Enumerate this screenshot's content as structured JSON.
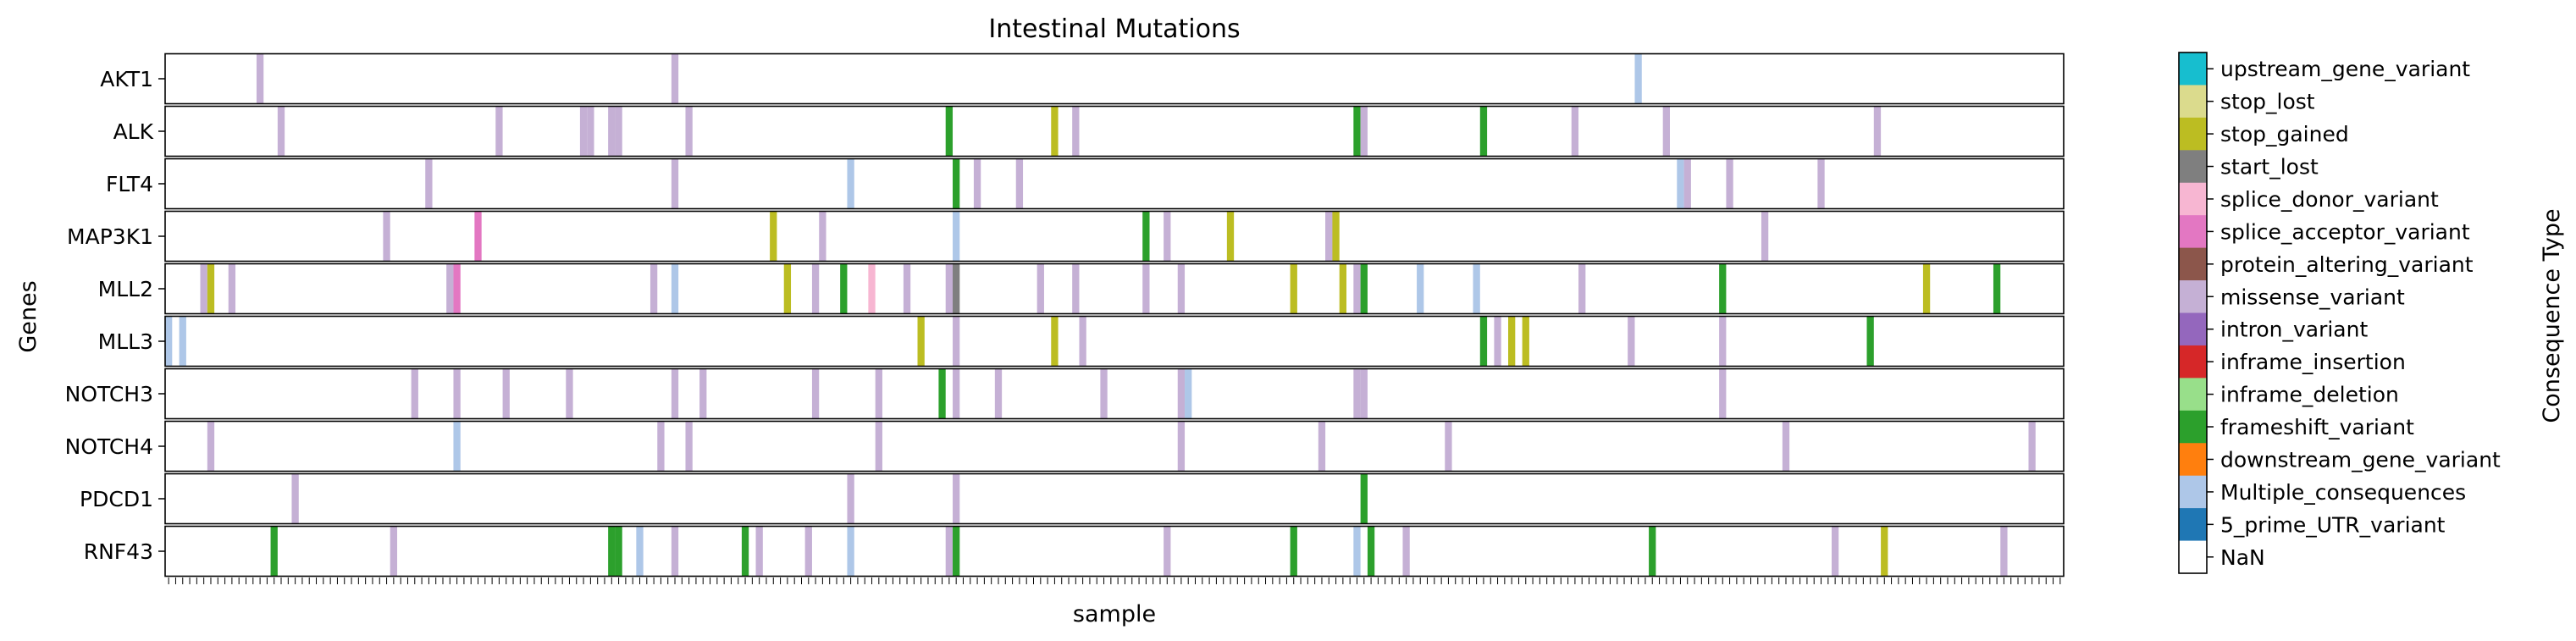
{
  "chart_data": {
    "type": "heatmap",
    "title": "Intestinal Mutations",
    "xlabel": "sample",
    "ylabel": "Genes",
    "colorbar_label": "Consequence Type",
    "n_samples": 270,
    "genes": [
      "AKT1",
      "ALK",
      "FLT4",
      "MAP3K1",
      "MLL2",
      "MLL3",
      "NOTCH3",
      "NOTCH4",
      "PDCD1",
      "RNF43"
    ],
    "categories": [
      {
        "name": "upstream_gene_variant",
        "color": "#17becf"
      },
      {
        "name": "stop_lost",
        "color": "#dbdb8d"
      },
      {
        "name": "stop_gained",
        "color": "#bcbd22"
      },
      {
        "name": "start_lost",
        "color": "#7f7f7f"
      },
      {
        "name": "splice_donor_variant",
        "color": "#f7b6d2"
      },
      {
        "name": "splice_acceptor_variant",
        "color": "#e377c2"
      },
      {
        "name": "protein_altering_variant",
        "color": "#8c564b"
      },
      {
        "name": "missense_variant",
        "color": "#c5b0d5"
      },
      {
        "name": "intron_variant",
        "color": "#9467bd"
      },
      {
        "name": "inframe_insertion",
        "color": "#d62728"
      },
      {
        "name": "inframe_deletion",
        "color": "#98df8a"
      },
      {
        "name": "frameshift_variant",
        "color": "#2ca02c"
      },
      {
        "name": "downstream_gene_variant",
        "color": "#ff7f0e"
      },
      {
        "name": "Multiple_consequences",
        "color": "#aec7e8"
      },
      {
        "name": "5_prime_UTR_variant",
        "color": "#1f77b4"
      },
      {
        "name": "NaN",
        "color": "#ffffff"
      }
    ],
    "mutations": {
      "AKT1": [
        [
          13,
          "missense_variant"
        ],
        [
          72,
          "missense_variant"
        ],
        [
          209,
          "Multiple_consequences"
        ]
      ],
      "ALK": [
        [
          16,
          "missense_variant"
        ],
        [
          47,
          "missense_variant"
        ],
        [
          59,
          "missense_variant"
        ],
        [
          60,
          "missense_variant"
        ],
        [
          63,
          "missense_variant"
        ],
        [
          64,
          "missense_variant"
        ],
        [
          74,
          "missense_variant"
        ],
        [
          111,
          "frameshift_variant"
        ],
        [
          126,
          "stop_gained"
        ],
        [
          129,
          "missense_variant"
        ],
        [
          169,
          "frameshift_variant"
        ],
        [
          170,
          "missense_variant"
        ],
        [
          187,
          "frameshift_variant"
        ],
        [
          200,
          "missense_variant"
        ],
        [
          213,
          "missense_variant"
        ],
        [
          243,
          "missense_variant"
        ]
      ],
      "FLT4": [
        [
          37,
          "missense_variant"
        ],
        [
          72,
          "missense_variant"
        ],
        [
          97,
          "Multiple_consequences"
        ],
        [
          112,
          "frameshift_variant"
        ],
        [
          115,
          "missense_variant"
        ],
        [
          121,
          "missense_variant"
        ],
        [
          215,
          "Multiple_consequences"
        ],
        [
          216,
          "missense_variant"
        ],
        [
          222,
          "missense_variant"
        ],
        [
          235,
          "missense_variant"
        ]
      ],
      "MAP3K1": [
        [
          31,
          "missense_variant"
        ],
        [
          44,
          "splice_acceptor_variant"
        ],
        [
          86,
          "stop_gained"
        ],
        [
          93,
          "missense_variant"
        ],
        [
          112,
          "Multiple_consequences"
        ],
        [
          139,
          "frameshift_variant"
        ],
        [
          142,
          "missense_variant"
        ],
        [
          151,
          "stop_gained"
        ],
        [
          165,
          "missense_variant"
        ],
        [
          165,
          "missense_variant"
        ],
        [
          166,
          "stop_gained"
        ],
        [
          227,
          "missense_variant"
        ]
      ],
      "MLL2": [
        [
          5,
          "missense_variant"
        ],
        [
          6,
          "stop_gained"
        ],
        [
          9,
          "missense_variant"
        ],
        [
          40,
          "missense_variant"
        ],
        [
          41,
          "splice_acceptor_variant"
        ],
        [
          69,
          "missense_variant"
        ],
        [
          72,
          "Multiple_consequences"
        ],
        [
          88,
          "stop_gained"
        ],
        [
          92,
          "missense_variant"
        ],
        [
          96,
          "frameshift_variant"
        ],
        [
          100,
          "splice_donor_variant"
        ],
        [
          105,
          "missense_variant"
        ],
        [
          111,
          "missense_variant"
        ],
        [
          112,
          "start_lost"
        ],
        [
          124,
          "missense_variant"
        ],
        [
          129,
          "missense_variant"
        ],
        [
          139,
          "missense_variant"
        ],
        [
          144,
          "missense_variant"
        ],
        [
          160,
          "stop_gained"
        ],
        [
          167,
          "stop_gained"
        ],
        [
          169,
          "missense_variant"
        ],
        [
          170,
          "frameshift_variant"
        ],
        [
          178,
          "Multiple_consequences"
        ],
        [
          186,
          "Multiple_consequences"
        ],
        [
          201,
          "missense_variant"
        ],
        [
          221,
          "frameshift_variant"
        ],
        [
          250,
          "stop_gained"
        ],
        [
          260,
          "frameshift_variant"
        ]
      ],
      "MLL3": [
        [
          0,
          "Multiple_consequences"
        ],
        [
          2,
          "Multiple_consequences"
        ],
        [
          107,
          "stop_gained"
        ],
        [
          112,
          "missense_variant"
        ],
        [
          126,
          "stop_gained"
        ],
        [
          130,
          "missense_variant"
        ],
        [
          187,
          "frameshift_variant"
        ],
        [
          189,
          "missense_variant"
        ],
        [
          191,
          "stop_gained"
        ],
        [
          193,
          "stop_gained"
        ],
        [
          208,
          "missense_variant"
        ],
        [
          221,
          "missense_variant"
        ],
        [
          242,
          "frameshift_variant"
        ]
      ],
      "NOTCH3": [
        [
          35,
          "missense_variant"
        ],
        [
          41,
          "missense_variant"
        ],
        [
          48,
          "missense_variant"
        ],
        [
          57,
          "missense_variant"
        ],
        [
          72,
          "missense_variant"
        ],
        [
          76,
          "missense_variant"
        ],
        [
          92,
          "missense_variant"
        ],
        [
          101,
          "missense_variant"
        ],
        [
          110,
          "frameshift_variant"
        ],
        [
          112,
          "missense_variant"
        ],
        [
          118,
          "missense_variant"
        ],
        [
          133,
          "missense_variant"
        ],
        [
          144,
          "missense_variant"
        ],
        [
          145,
          "Multiple_consequences"
        ],
        [
          169,
          "missense_variant"
        ],
        [
          170,
          "missense_variant"
        ],
        [
          221,
          "missense_variant"
        ]
      ],
      "NOTCH4": [
        [
          6,
          "missense_variant"
        ],
        [
          41,
          "Multiple_consequences"
        ],
        [
          70,
          "missense_variant"
        ],
        [
          74,
          "missense_variant"
        ],
        [
          101,
          "missense_variant"
        ],
        [
          144,
          "missense_variant"
        ],
        [
          164,
          "missense_variant"
        ],
        [
          182,
          "missense_variant"
        ],
        [
          230,
          "missense_variant"
        ],
        [
          265,
          "missense_variant"
        ]
      ],
      "PDCD1": [
        [
          18,
          "missense_variant"
        ],
        [
          97,
          "missense_variant"
        ],
        [
          112,
          "missense_variant"
        ],
        [
          170,
          "frameshift_variant"
        ]
      ],
      "RNF43": [
        [
          15,
          "frameshift_variant"
        ],
        [
          32,
          "missense_variant"
        ],
        [
          63,
          "frameshift_variant"
        ],
        [
          64,
          "frameshift_variant"
        ],
        [
          67,
          "Multiple_consequences"
        ],
        [
          72,
          "missense_variant"
        ],
        [
          82,
          "frameshift_variant"
        ],
        [
          84,
          "missense_variant"
        ],
        [
          91,
          "missense_variant"
        ],
        [
          97,
          "Multiple_consequences"
        ],
        [
          111,
          "missense_variant"
        ],
        [
          112,
          "frameshift_variant"
        ],
        [
          142,
          "missense_variant"
        ],
        [
          160,
          "frameshift_variant"
        ],
        [
          169,
          "Multiple_consequences"
        ],
        [
          171,
          "frameshift_variant"
        ],
        [
          176,
          "missense_variant"
        ],
        [
          211,
          "frameshift_variant"
        ],
        [
          237,
          "missense_variant"
        ],
        [
          244,
          "stop_gained"
        ],
        [
          261,
          "missense_variant"
        ]
      ]
    },
    "grid": false,
    "legend_placement": "right (colorbar)"
  }
}
